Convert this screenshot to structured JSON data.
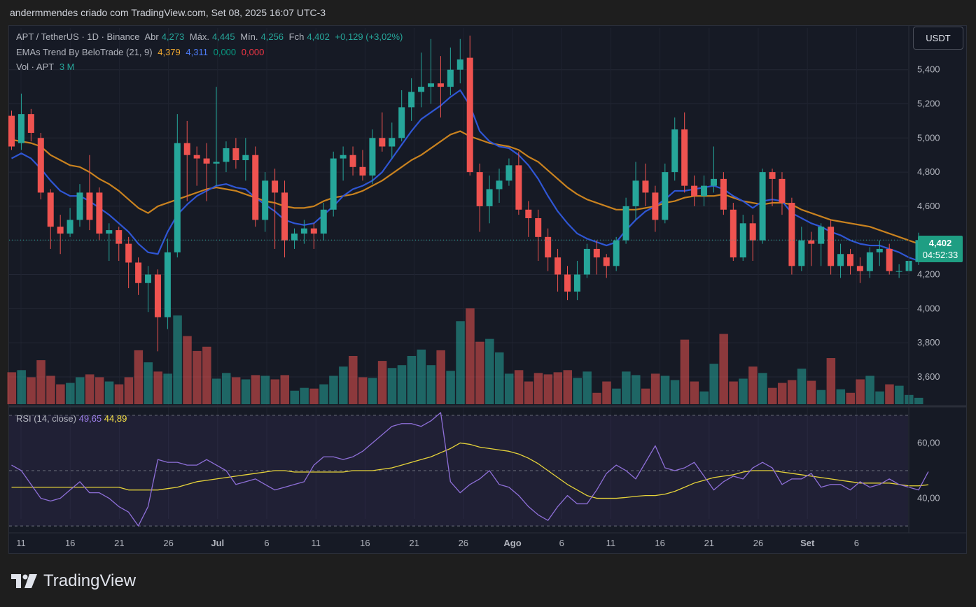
{
  "header": "andermmendes criado com TradingView.com, Set 08, 2025 16:07 UTC-3",
  "legend": {
    "symbol": "APT / TetherUS · 1D · Binance",
    "open_label": "Abr",
    "open": "4,273",
    "high_label": "Máx.",
    "high": "4,445",
    "low_label": "Mín.",
    "low": "4,256",
    "close_label": "Fch",
    "close": "4,402",
    "change": "+0,129 (+3,02%)",
    "ema_name": "EMAs Trend By BeloTrade (21, 9)",
    "ema21_value": "4,379",
    "ema9_value": "4,311",
    "ema_v3": "0,000",
    "ema_v4": "0,000",
    "vol_label": "Vol · APT",
    "vol_value": "3 M",
    "rsi_label": "RSI (14, close)",
    "rsi_value": "49,65",
    "rsi_ma_value": "44,89"
  },
  "currency_button": "USDT",
  "last_price": "4,402",
  "countdown": "04:52:33",
  "logo_text": "TradingView",
  "colors": {
    "up": "#26a69a",
    "down": "#ef5350",
    "ema21": "#c9821f",
    "ema9": "#2f56d4",
    "rsi": "#8e6fd8",
    "rsi_ma": "#e6d33a",
    "background": "#161a25"
  },
  "chart_data": {
    "type": "candlestick",
    "price_axis": {
      "ticks": [
        "5,400",
        "5,200",
        "5,000",
        "4,800",
        "4,600",
        "4,400",
        "4,200",
        "4,000",
        "3,800",
        "3,600"
      ],
      "ylim": [
        3.44,
        5.62
      ]
    },
    "time_axis_labels": [
      "11",
      "16",
      "21",
      "26",
      "Jul",
      "6",
      "11",
      "16",
      "21",
      "26",
      "Ago",
      "6",
      "11",
      "16",
      "21",
      "26",
      "Set",
      "6"
    ],
    "candles": [
      [
        5.13,
        4.95,
        5.16,
        4.93,
        45
      ],
      [
        4.97,
        5.14,
        5.26,
        4.93,
        48
      ],
      [
        5.14,
        5.03,
        5.17,
        4.98,
        38
      ],
      [
        5.0,
        4.68,
        5.03,
        4.64,
        62
      ],
      [
        4.68,
        4.48,
        4.7,
        4.35,
        40
      ],
      [
        4.48,
        4.44,
        4.55,
        4.32,
        28
      ],
      [
        4.44,
        4.52,
        4.59,
        4.42,
        30
      ],
      [
        4.52,
        4.68,
        4.73,
        4.48,
        38
      ],
      [
        4.68,
        4.52,
        4.9,
        4.46,
        42
      ],
      [
        4.68,
        4.44,
        4.71,
        4.4,
        38
      ],
      [
        4.44,
        4.46,
        4.5,
        4.28,
        32
      ],
      [
        4.46,
        4.38,
        4.48,
        4.28,
        28
      ],
      [
        4.38,
        4.27,
        4.42,
        4.12,
        38
      ],
      [
        4.27,
        4.15,
        4.3,
        4.08,
        76
      ],
      [
        4.15,
        4.2,
        4.25,
        3.98,
        59
      ],
      [
        4.2,
        3.95,
        4.23,
        3.75,
        46
      ],
      [
        3.95,
        4.33,
        4.41,
        3.88,
        43
      ],
      [
        4.33,
        4.97,
        5.14,
        4.3,
        125
      ],
      [
        4.97,
        4.9,
        5.1,
        4.63,
        96
      ],
      [
        4.9,
        4.88,
        4.95,
        4.72,
        75
      ],
      [
        4.88,
        4.85,
        4.97,
        4.63,
        81
      ],
      [
        4.85,
        4.86,
        5.3,
        4.72,
        36
      ],
      [
        4.86,
        4.94,
        4.98,
        4.8,
        44
      ],
      [
        4.94,
        4.87,
        5.0,
        4.82,
        38
      ],
      [
        4.87,
        4.9,
        5.0,
        4.75,
        35
      ],
      [
        4.9,
        4.52,
        4.95,
        4.48,
        41
      ],
      [
        4.52,
        4.75,
        4.8,
        4.45,
        40
      ],
      [
        4.75,
        4.68,
        4.82,
        4.35,
        35
      ],
      [
        4.68,
        4.4,
        4.75,
        4.3,
        41
      ],
      [
        4.4,
        4.44,
        4.47,
        4.35,
        19
      ],
      [
        4.44,
        4.47,
        4.52,
        4.38,
        23
      ],
      [
        4.47,
        4.44,
        4.5,
        4.35,
        22
      ],
      [
        4.44,
        4.58,
        4.62,
        4.4,
        28
      ],
      [
        4.58,
        4.88,
        4.92,
        4.54,
        40
      ],
      [
        4.88,
        4.9,
        4.95,
        4.75,
        53
      ],
      [
        4.9,
        4.83,
        4.95,
        4.78,
        68
      ],
      [
        4.83,
        4.78,
        4.93,
        4.75,
        38
      ],
      [
        4.78,
        5.0,
        5.05,
        4.73,
        37
      ],
      [
        5.0,
        4.95,
        5.15,
        4.92,
        61
      ],
      [
        4.95,
        5.0,
        5.09,
        4.88,
        51
      ],
      [
        5.0,
        5.18,
        5.28,
        4.98,
        55
      ],
      [
        5.18,
        5.27,
        5.35,
        5.1,
        68
      ],
      [
        5.27,
        5.3,
        5.5,
        5.18,
        77
      ],
      [
        5.3,
        5.32,
        5.58,
        5.2,
        55
      ],
      [
        5.32,
        5.3,
        5.48,
        5.12,
        76
      ],
      [
        5.3,
        5.4,
        5.53,
        5.25,
        47
      ],
      [
        5.4,
        5.46,
        5.58,
        5.32,
        117
      ],
      [
        5.47,
        4.8,
        5.6,
        4.78,
        135
      ],
      [
        4.8,
        4.6,
        4.85,
        4.45,
        88
      ],
      [
        4.6,
        4.7,
        4.78,
        4.5,
        92
      ],
      [
        4.7,
        4.75,
        4.82,
        4.62,
        73
      ],
      [
        4.75,
        4.84,
        4.88,
        4.72,
        43
      ],
      [
        4.84,
        4.58,
        4.92,
        4.55,
        48
      ],
      [
        4.58,
        4.53,
        4.63,
        4.42,
        32
      ],
      [
        4.53,
        4.42,
        4.58,
        4.28,
        44
      ],
      [
        4.42,
        4.3,
        4.47,
        4.22,
        42
      ],
      [
        4.3,
        4.2,
        4.35,
        4.1,
        45
      ],
      [
        4.2,
        4.1,
        4.25,
        4.05,
        48
      ],
      [
        4.1,
        4.2,
        4.28,
        4.05,
        37
      ],
      [
        4.2,
        4.35,
        4.38,
        4.18,
        46
      ],
      [
        4.35,
        4.3,
        4.4,
        4.2,
        16
      ],
      [
        4.3,
        4.25,
        4.32,
        4.18,
        32
      ],
      [
        4.25,
        4.4,
        4.42,
        4.22,
        22
      ],
      [
        4.4,
        4.6,
        4.65,
        4.38,
        46
      ],
      [
        4.6,
        4.75,
        4.86,
        4.52,
        41
      ],
      [
        4.75,
        4.68,
        4.85,
        4.6,
        22
      ],
      [
        4.68,
        4.52,
        4.72,
        4.45,
        43
      ],
      [
        4.52,
        4.8,
        4.85,
        4.5,
        40
      ],
      [
        4.8,
        5.05,
        5.12,
        4.75,
        34
      ],
      [
        5.05,
        4.72,
        5.15,
        4.68,
        91
      ],
      [
        4.72,
        4.66,
        4.78,
        4.6,
        32
      ],
      [
        4.66,
        4.72,
        4.78,
        4.6,
        18
      ],
      [
        4.72,
        4.76,
        4.95,
        4.68,
        57
      ],
      [
        4.76,
        4.58,
        4.8,
        4.55,
        99
      ],
      [
        4.58,
        4.3,
        4.62,
        4.28,
        32
      ],
      [
        4.3,
        4.5,
        4.55,
        4.28,
        36
      ],
      [
        4.5,
        4.4,
        4.55,
        4.28,
        53
      ],
      [
        4.4,
        4.8,
        4.82,
        4.38,
        44
      ],
      [
        4.8,
        4.76,
        4.82,
        4.6,
        23
      ],
      [
        4.76,
        4.62,
        4.8,
        4.55,
        30
      ],
      [
        4.62,
        4.25,
        4.65,
        4.2,
        34
      ],
      [
        4.25,
        4.4,
        4.48,
        4.22,
        50
      ],
      [
        4.4,
        4.38,
        4.45,
        4.25,
        33
      ],
      [
        4.38,
        4.48,
        4.5,
        4.25,
        20
      ],
      [
        4.48,
        4.25,
        4.52,
        4.2,
        65
      ],
      [
        4.25,
        4.32,
        4.38,
        4.18,
        21
      ],
      [
        4.32,
        4.25,
        4.35,
        4.2,
        16
      ],
      [
        4.25,
        4.22,
        4.3,
        4.15,
        35
      ],
      [
        4.22,
        4.33,
        4.36,
        4.18,
        40
      ],
      [
        4.33,
        4.35,
        4.4,
        4.25,
        18
      ],
      [
        4.35,
        4.22,
        4.38,
        4.2,
        28
      ],
      [
        4.22,
        4.22,
        4.26,
        4.18,
        26
      ],
      [
        4.22,
        4.28,
        4.32,
        4.2,
        13
      ],
      [
        4.273,
        4.402,
        4.445,
        4.256,
        9
      ]
    ],
    "ema21": [
      4.99,
      4.98,
      4.97,
      4.95,
      4.9,
      4.87,
      4.84,
      4.83,
      4.8,
      4.76,
      4.73,
      4.69,
      4.64,
      4.59,
      4.56,
      4.6,
      4.62,
      4.64,
      4.66,
      4.68,
      4.7,
      4.71,
      4.7,
      4.69,
      4.67,
      4.65,
      4.63,
      4.62,
      4.6,
      4.59,
      4.59,
      4.6,
      4.63,
      4.65,
      4.66,
      4.67,
      4.69,
      4.72,
      4.75,
      4.79,
      4.83,
      4.87,
      4.9,
      4.94,
      4.98,
      5.02,
      5.04,
      5.01,
      4.99,
      4.97,
      4.96,
      4.95,
      4.93,
      4.89,
      4.86,
      4.81,
      4.76,
      4.71,
      4.67,
      4.64,
      4.62,
      4.6,
      4.58,
      4.58,
      4.58,
      4.59,
      4.6,
      4.62,
      4.63,
      4.65,
      4.66,
      4.66,
      4.66,
      4.67,
      4.65,
      4.63,
      4.62,
      4.61,
      4.62,
      4.62,
      4.61,
      4.58,
      4.56,
      4.54,
      4.52,
      4.51,
      4.5,
      4.49,
      4.48,
      4.46,
      4.44,
      4.42,
      4.4,
      4.38,
      4.38
    ],
    "ema9": [
      4.88,
      4.91,
      4.88,
      4.82,
      4.75,
      4.69,
      4.66,
      4.66,
      4.63,
      4.59,
      4.55,
      4.5,
      4.45,
      4.38,
      4.33,
      4.32,
      4.45,
      4.55,
      4.61,
      4.66,
      4.69,
      4.72,
      4.73,
      4.71,
      4.7,
      4.65,
      4.61,
      4.57,
      4.52,
      4.5,
      4.49,
      4.5,
      4.55,
      4.6,
      4.66,
      4.7,
      4.72,
      4.75,
      4.8,
      4.88,
      4.96,
      5.04,
      5.11,
      5.15,
      5.19,
      5.24,
      5.28,
      5.19,
      5.04,
      4.98,
      4.95,
      4.94,
      4.9,
      4.84,
      4.76,
      4.66,
      4.57,
      4.5,
      4.44,
      4.41,
      4.39,
      4.37,
      4.39,
      4.46,
      4.52,
      4.57,
      4.6,
      4.64,
      4.69,
      4.69,
      4.7,
      4.71,
      4.72,
      4.7,
      4.66,
      4.63,
      4.59,
      4.63,
      4.64,
      4.63,
      4.56,
      4.53,
      4.5,
      4.48,
      4.45,
      4.43,
      4.4,
      4.38,
      4.37,
      4.37,
      4.35,
      4.33,
      4.3,
      4.28,
      4.31
    ],
    "rsi_axis": {
      "ticks": [
        "60,00",
        "40,00"
      ],
      "ylim": [
        28,
        72
      ],
      "bands": [
        70,
        50,
        30
      ]
    },
    "rsi": [
      52,
      50,
      45,
      40,
      39,
      40,
      43,
      46,
      42,
      42,
      40,
      37,
      35,
      30,
      37,
      54,
      53,
      53,
      52,
      52,
      54,
      52,
      50,
      45,
      46,
      47,
      45,
      43,
      44,
      45,
      46,
      52,
      55,
      55,
      54,
      55,
      57,
      60,
      63,
      66,
      67,
      67,
      66,
      68,
      71,
      46,
      42,
      45,
      47,
      50,
      45,
      44,
      41,
      37,
      34,
      32,
      37,
      41,
      38,
      38,
      43,
      49,
      52,
      50,
      47,
      53,
      59,
      51,
      50,
      51,
      53,
      48,
      43,
      46,
      48,
      47,
      51,
      53,
      51,
      45,
      47,
      47,
      49,
      44,
      45,
      45,
      43,
      46,
      44,
      45,
      47,
      45,
      44,
      43,
      49.65
    ],
    "rsi_ma": [
      44,
      44,
      44,
      44,
      44,
      44,
      44,
      44,
      44,
      44,
      44,
      44,
      43,
      43,
      43,
      43,
      43.5,
      44,
      45,
      46,
      46.5,
      47,
      47.5,
      48,
      48.5,
      49,
      49.5,
      50,
      50,
      49.5,
      49.5,
      49.5,
      49.5,
      49.5,
      49.5,
      50,
      50,
      50,
      50.5,
      51,
      52,
      53,
      54,
      55,
      56.5,
      58,
      60,
      59.5,
      58.5,
      58,
      57.5,
      57,
      56,
      54.5,
      52.5,
      50,
      47.5,
      45,
      43,
      41,
      40,
      40,
      40,
      40.3,
      40.7,
      41,
      41,
      41.5,
      42.5,
      44,
      45.5,
      46.5,
      47.5,
      48,
      48.5,
      49.5,
      50,
      50,
      50,
      49.5,
      49,
      48.5,
      48,
      47.5,
      47,
      46.5,
      46,
      45.5,
      45.5,
      45.5,
      45.5,
      45,
      44.5,
      44.5,
      44.89
    ]
  }
}
